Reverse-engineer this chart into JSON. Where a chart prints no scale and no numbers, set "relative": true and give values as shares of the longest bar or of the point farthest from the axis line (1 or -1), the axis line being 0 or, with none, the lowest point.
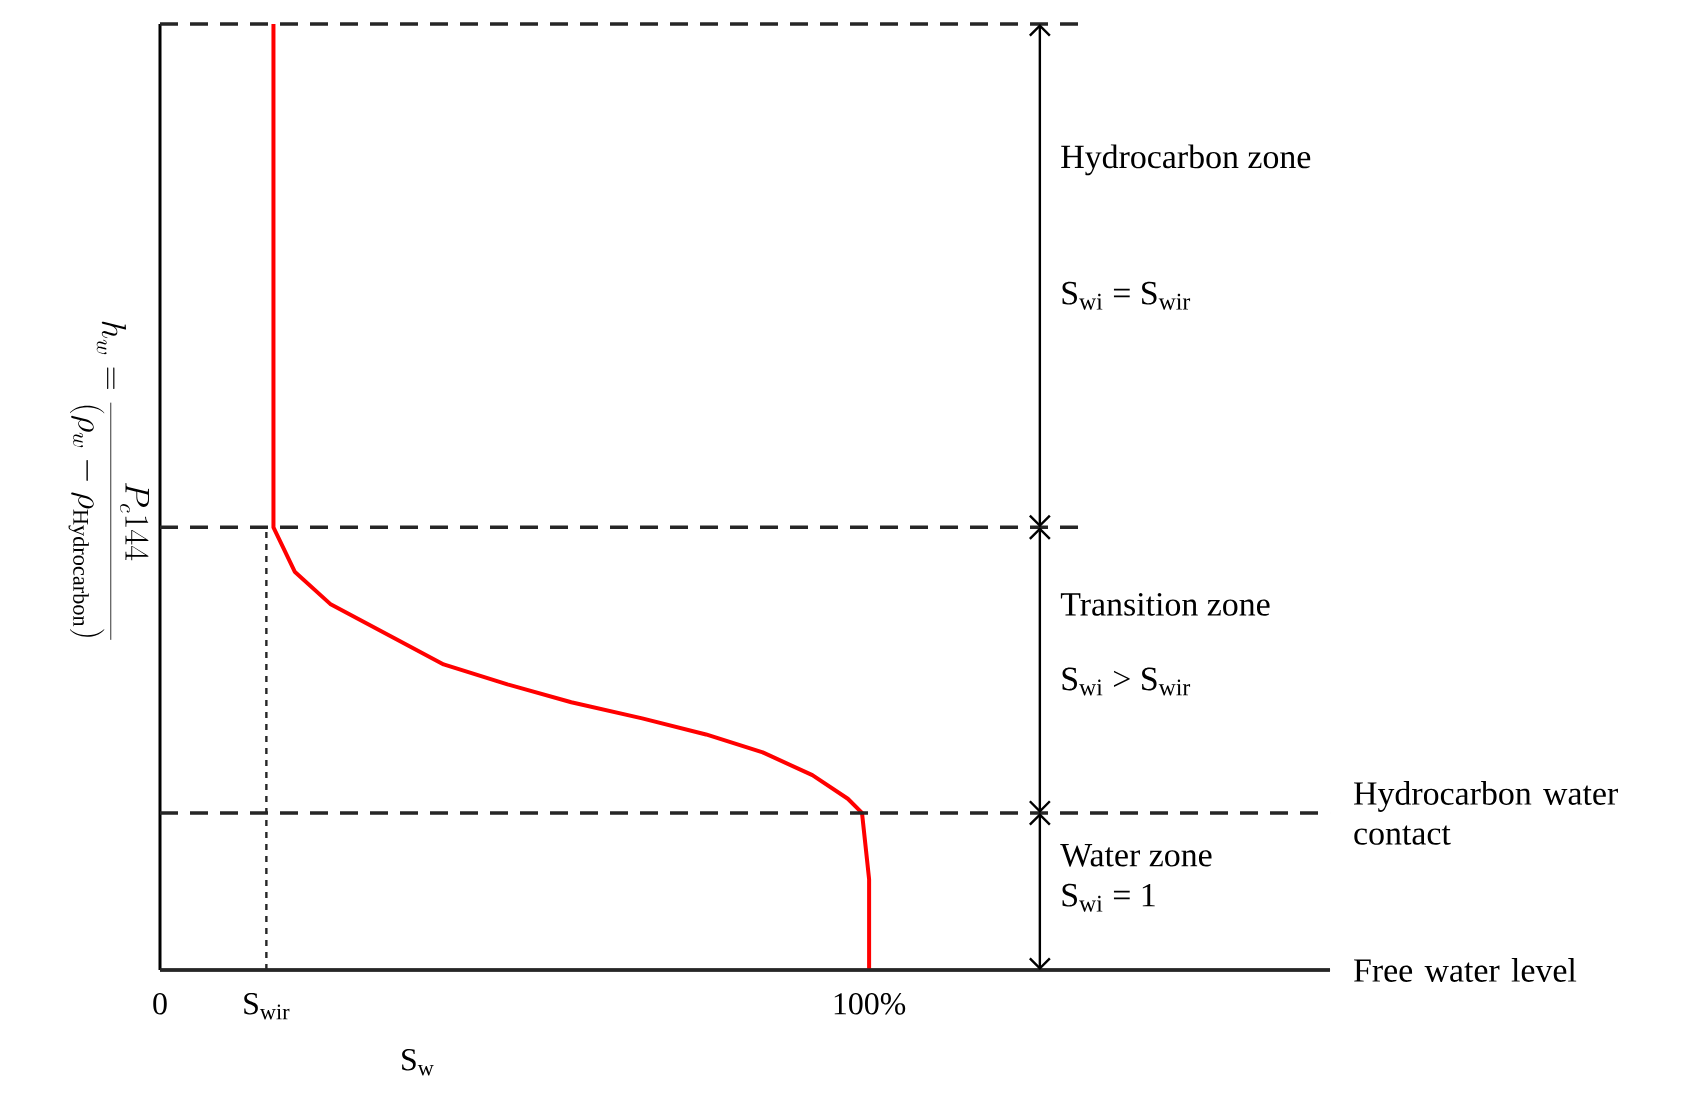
{
  "chart_data": {
    "type": "line",
    "relative": true,
    "xlabel": "S$_{w}$",
    "ylabel": "h_w = \\frac{P_c 144}{(\\rho_w - \\rho_{\\mathrm{Hydrocarbon}})}",
    "xlim": [
      0,
      165
    ],
    "xticks": [
      0,
      {
        "value": 15,
        "label": "S$_{wir}$"
      },
      {
        "value": 100,
        "label": "100%"
      }
    ],
    "x": [
      16,
      16,
      16,
      16,
      16,
      19,
      24,
      33,
      40,
      49,
      58,
      68,
      77,
      85,
      92,
      97,
      99,
      100,
      100,
      100
    ],
    "series": [
      {
        "color": "#ff0000",
        "values": [
          1.0,
          0.82,
          0.61,
          0.5,
          0.468,
          0.421,
          0.387,
          0.351,
          0.323,
          0.302,
          0.283,
          0.266,
          0.249,
          0.23,
          0.206,
          0.181,
          0.166,
          0.096,
          0.011,
          0
        ]
      }
    ],
    "ref_lines": [
      {
        "axis": "y",
        "value": 1.0,
        "line_style": "dashed"
      },
      {
        "axis": "y",
        "value": 0.468,
        "line_style": "dashed"
      },
      {
        "axis": "y",
        "value": 0.166,
        "line_style": "dashed",
        "label": "Hydrocarbon water contact"
      },
      {
        "axis": "y",
        "value": 0,
        "line_style": "solid",
        "label": "Free water level"
      },
      {
        "axis": "x",
        "value": 15,
        "line_style": "dotted"
      }
    ],
    "annotations": [
      "Hydrocarbon zone",
      "S$_{wi}$ = S$_{wir}$",
      "Transition zone",
      "S$_{wi}$ > S$_{wir}$",
      "Water zone",
      "S$_{wi}$ = 1"
    ]
  }
}
